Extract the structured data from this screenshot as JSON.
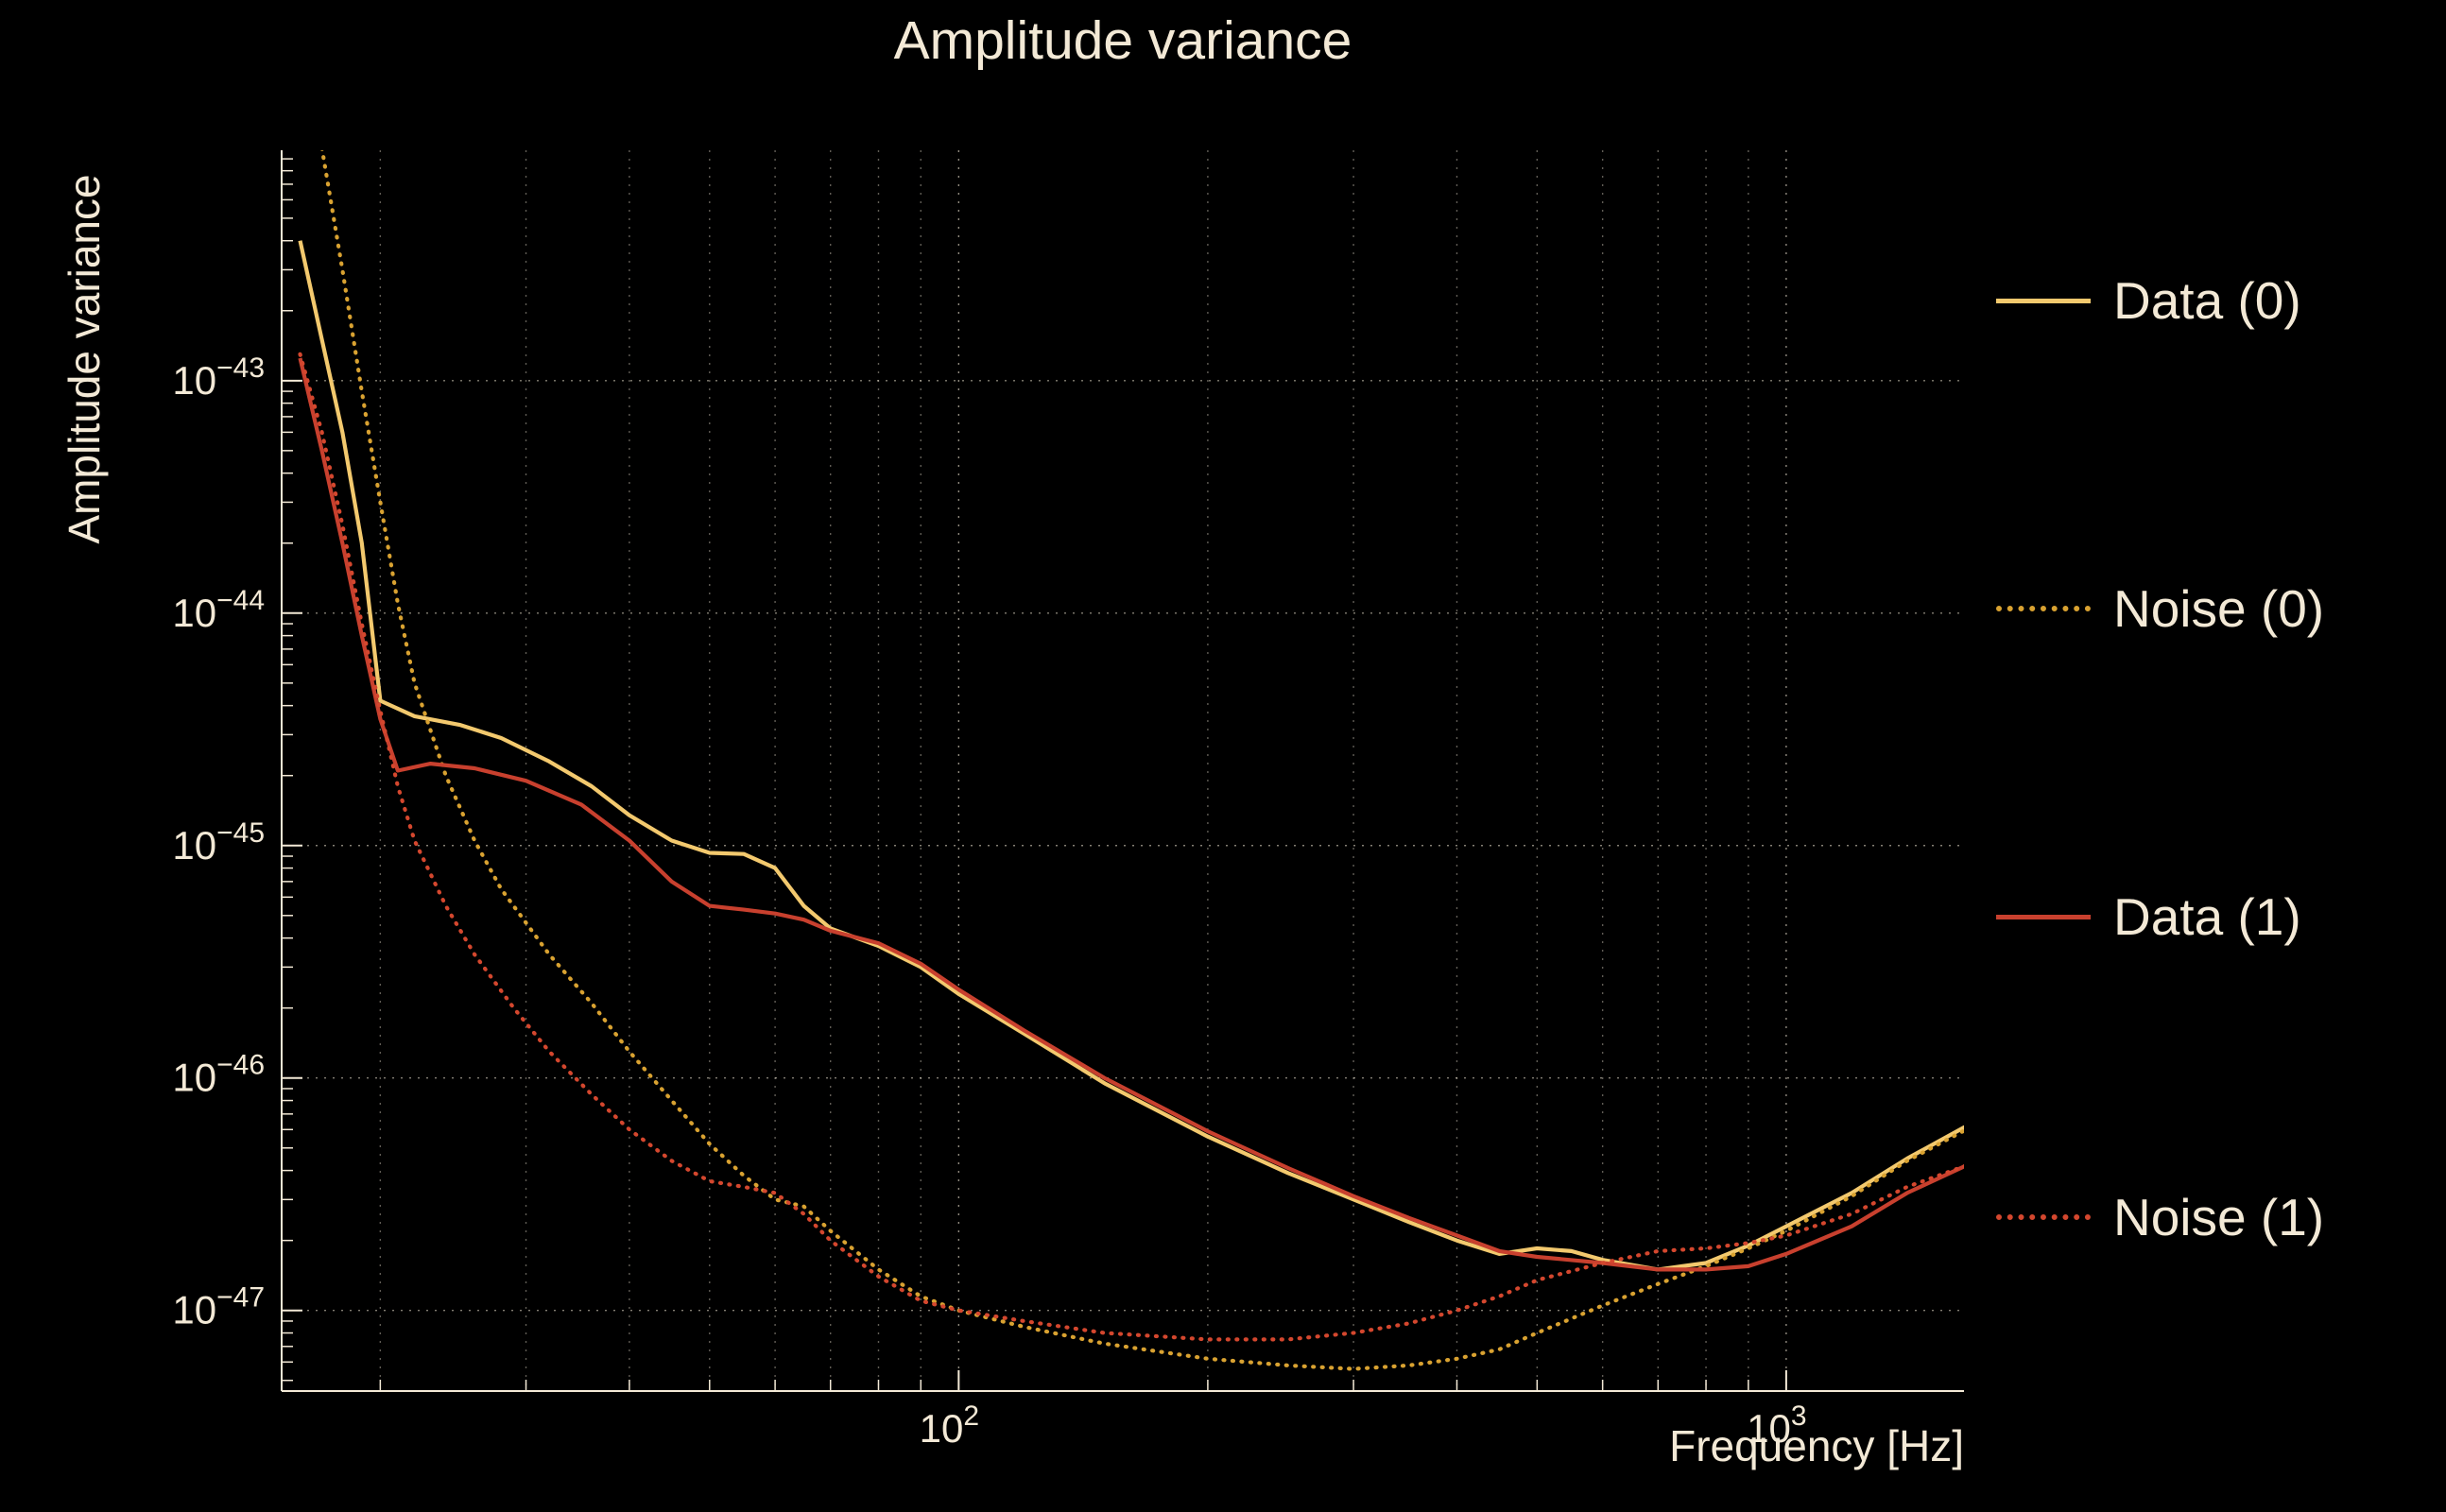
{
  "title": "Amplitude variance",
  "colors": {
    "background": "#000000",
    "text": "#f3e9d6",
    "grid": "#f3e9d6",
    "data0": "#f3c96e",
    "noise0": "#d9a231",
    "data1": "#c8402e",
    "noise1": "#d4472e"
  },
  "chart_data": {
    "type": "line",
    "title": "Amplitude variance",
    "xlabel": "Frequency [Hz]",
    "ylabel": "Amplitude variance",
    "x_scale": "log",
    "y_scale": "log",
    "xlim": [
      15.2,
      1640
    ],
    "ylim": [
      4.5e-48,
      9.8e-43
    ],
    "x_tick_exponents": [
      2,
      3
    ],
    "y_tick_exponents": [
      -43,
      -44,
      -45,
      -46,
      -47
    ],
    "grid": true,
    "legend_position": "right-outside",
    "series": [
      {
        "id": "data-0",
        "name": "Data (0)",
        "line_style": "solid",
        "color": "#f3c96e",
        "x": [
          16,
          17,
          18,
          19,
          20,
          22,
          25,
          28,
          32,
          36,
          40,
          45,
          50,
          55,
          60,
          65,
          70,
          80,
          90,
          100,
          120,
          150,
          200,
          250,
          300,
          350,
          400,
          450,
          500,
          550,
          600,
          700,
          800,
          900,
          1000,
          1200,
          1400,
          1650
        ],
        "y": [
          4e-43,
          1.5e-43,
          6e-44,
          2e-44,
          4.2e-45,
          3.6e-45,
          3.3e-45,
          2.9e-45,
          2.3e-45,
          1.8e-45,
          1.35e-45,
          1.05e-45,
          9.3e-46,
          9.2e-46,
          8e-46,
          5.5e-46,
          4.4e-46,
          3.7e-46,
          3e-46,
          2.3e-46,
          1.55e-46,
          9.5e-47,
          5.6e-47,
          3.9e-47,
          3e-47,
          2.4e-47,
          2e-47,
          1.75e-47,
          1.85e-47,
          1.8e-47,
          1.65e-47,
          1.5e-47,
          1.6e-47,
          1.9e-47,
          2.3e-47,
          3.2e-47,
          4.5e-47,
          6.2e-47
        ]
      },
      {
        "id": "noise-0",
        "name": "Noise (0)",
        "line_style": "dotted",
        "color": "#d9a231",
        "x": [
          17,
          18,
          19,
          20,
          21,
          22,
          24,
          26,
          28,
          32,
          36,
          40,
          45,
          50,
          55,
          60,
          65,
          70,
          80,
          90,
          100,
          120,
          150,
          200,
          250,
          300,
          350,
          400,
          450,
          500,
          600,
          700,
          800,
          900,
          1000,
          1200,
          1400,
          1650
        ],
        "y": [
          1e-42,
          3e-43,
          9e-44,
          3e-44,
          1.1e-44,
          5e-45,
          2e-45,
          1.05e-45,
          6.5e-46,
          3.4e-46,
          2.1e-46,
          1.3e-46,
          8e-47,
          5.2e-47,
          3.8e-47,
          3e-47,
          2.8e-47,
          2.2e-47,
          1.5e-47,
          1.15e-47,
          1e-47,
          8.5e-48,
          7.2e-48,
          6.2e-48,
          5.8e-48,
          5.6e-48,
          5.8e-48,
          6.2e-48,
          6.8e-48,
          8e-48,
          1.05e-47,
          1.3e-47,
          1.55e-47,
          1.85e-47,
          2.2e-47,
          3.1e-47,
          4.4e-47,
          6e-47
        ]
      },
      {
        "id": "data-1",
        "name": "Data (1)",
        "line_style": "solid",
        "color": "#c8402e",
        "x": [
          16,
          17,
          18,
          19,
          20,
          21,
          23,
          26,
          30,
          35,
          40,
          45,
          50,
          55,
          60,
          65,
          70,
          80,
          90,
          100,
          120,
          150,
          200,
          250,
          300,
          350,
          400,
          450,
          500,
          600,
          700,
          800,
          900,
          1000,
          1200,
          1400,
          1650
        ],
        "y": [
          1.25e-43,
          5e-44,
          2e-44,
          8e-45,
          3.5e-45,
          2.1e-45,
          2.25e-45,
          2.15e-45,
          1.9e-45,
          1.5e-45,
          1.05e-45,
          7e-46,
          5.5e-46,
          5.3e-46,
          5.1e-46,
          4.8e-46,
          4.3e-46,
          3.8e-46,
          3.1e-46,
          2.4e-46,
          1.6e-46,
          1e-46,
          5.9e-47,
          4.1e-47,
          3.1e-47,
          2.5e-47,
          2.1e-47,
          1.8e-47,
          1.7e-47,
          1.6e-47,
          1.5e-47,
          1.5e-47,
          1.55e-47,
          1.75e-47,
          2.3e-47,
          3.2e-47,
          4.2e-47
        ]
      },
      {
        "id": "noise-1",
        "name": "Noise (1)",
        "line_style": "dotted",
        "color": "#d4472e",
        "x": [
          16,
          17,
          18,
          19,
          20,
          21,
          22,
          24,
          26,
          29,
          32,
          36,
          40,
          45,
          50,
          55,
          60,
          65,
          70,
          80,
          90,
          100,
          120,
          150,
          200,
          250,
          300,
          350,
          400,
          450,
          500,
          600,
          700,
          800,
          900,
          1000,
          1200,
          1400,
          1650
        ],
        "y": [
          1.3e-43,
          6e-44,
          2.4e-44,
          9e-45,
          3.8e-45,
          1.8e-45,
          1.05e-45,
          5.5e-46,
          3.4e-46,
          2e-46,
          1.3e-46,
          8.5e-47,
          6e-47,
          4.4e-47,
          3.6e-47,
          3.4e-47,
          3.2e-47,
          2.6e-47,
          2e-47,
          1.4e-47,
          1.1e-47,
          1e-47,
          9e-48,
          8e-48,
          7.5e-48,
          7.5e-48,
          8e-48,
          8.8e-48,
          1e-47,
          1.15e-47,
          1.35e-47,
          1.6e-47,
          1.8e-47,
          1.85e-47,
          1.95e-47,
          2.1e-47,
          2.6e-47,
          3.4e-47,
          4.2e-47
        ]
      }
    ]
  }
}
